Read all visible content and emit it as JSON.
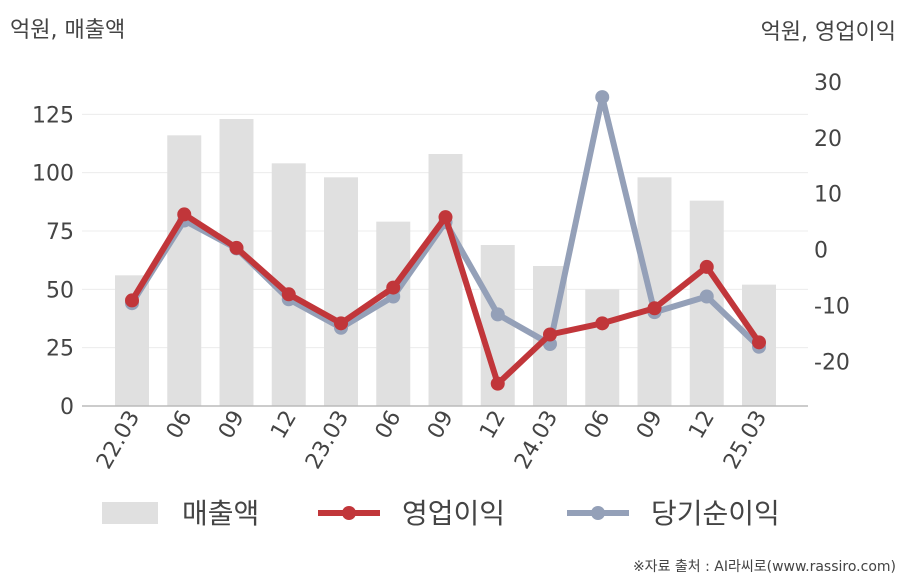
{
  "chart_data": {
    "type": "bar",
    "left_axis_title": "억원, 매출액",
    "right_axis_title": "억원, 영업이익",
    "categories": [
      "22.03",
      "06",
      "09",
      "12",
      "23.03",
      "06",
      "09",
      "12",
      "24.03",
      "06",
      "09",
      "12",
      "25.03"
    ],
    "left_axis": {
      "ylim": [
        0,
        150
      ],
      "ticks": [
        0,
        25,
        50,
        75,
        100,
        125
      ]
    },
    "right_axis": {
      "ylim": [
        -28,
        30
      ],
      "ticks": [
        -20,
        -10,
        0,
        10,
        20,
        30
      ]
    },
    "series": [
      {
        "name": "매출액",
        "type": "bar",
        "axis": "left",
        "color": "#e0e0e0",
        "values": [
          56,
          116,
          123,
          104,
          98,
          79,
          108,
          69,
          60,
          50,
          98,
          88,
          52
        ]
      },
      {
        "name": "영업이익",
        "type": "line",
        "axis": "right",
        "color": "#c1363a",
        "values": [
          -9.1,
          6.3,
          0.3,
          -8.0,
          -13.2,
          -6.8,
          5.8,
          -24.0,
          -15.2,
          -13.2,
          -10.5,
          -3.1,
          -16.6
        ]
      },
      {
        "name": "당기순이익",
        "type": "line",
        "axis": "right",
        "color": "#94a0b8",
        "values": [
          -9.6,
          5.2,
          0.2,
          -8.9,
          -14.0,
          -8.4,
          4.9,
          -11.6,
          -16.9,
          27.3,
          -11.2,
          -8.4,
          -17.4
        ]
      }
    ],
    "legend_position": "bottom",
    "gridlines": true
  },
  "source_note": "※자료 출처 : AI라씨로(www.rassiro.com)"
}
